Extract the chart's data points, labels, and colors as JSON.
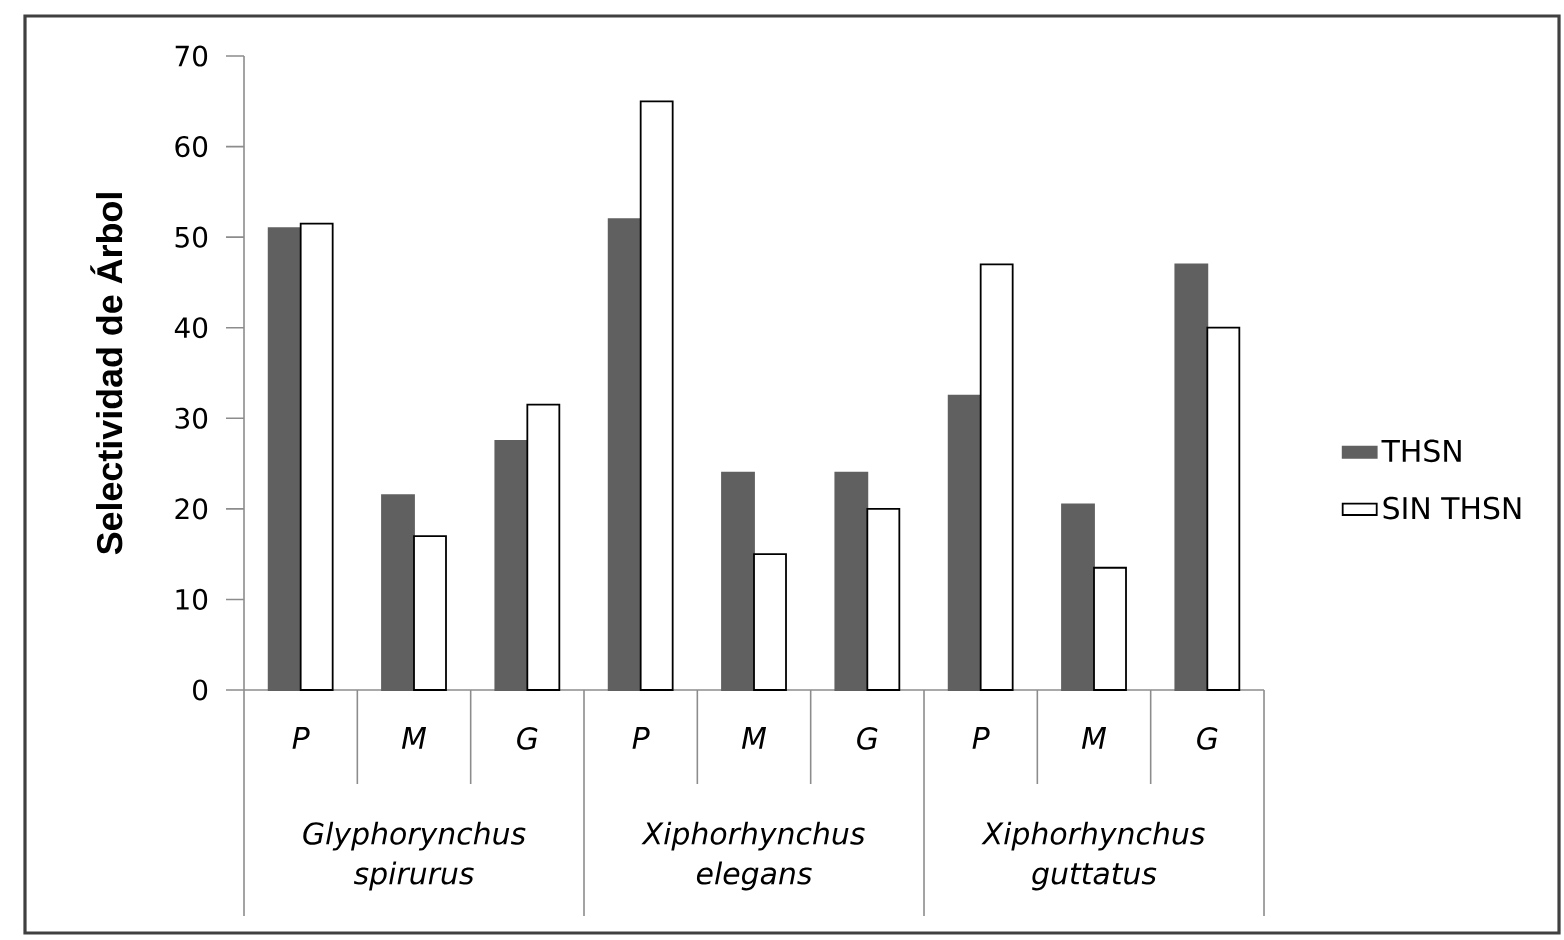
{
  "chart_data": {
    "type": "bar",
    "ylabel": "Selectividad de Árbol",
    "categories": [
      "P",
      "M",
      "G",
      "P",
      "M",
      "G",
      "P",
      "M",
      "G"
    ],
    "series": [
      {
        "name": "THSN",
        "color": "#606060",
        "values": [
          51,
          21.5,
          27.5,
          52,
          24,
          24,
          32.5,
          20.5,
          47
        ]
      },
      {
        "name": "SIN THSN",
        "color": "#ffffff",
        "values": [
          51.5,
          17,
          31.5,
          65,
          15,
          20,
          47,
          13.5,
          40
        ]
      }
    ],
    "ylim": [
      0,
      70
    ],
    "yticks": [
      0,
      10,
      20,
      30,
      40,
      50,
      60,
      70
    ],
    "legend": "right",
    "annotations": [
      "Glyphorynchus spirurus",
      "Xiphorhynchus elegans",
      "Xiphorhynchus guttatus"
    ]
  }
}
